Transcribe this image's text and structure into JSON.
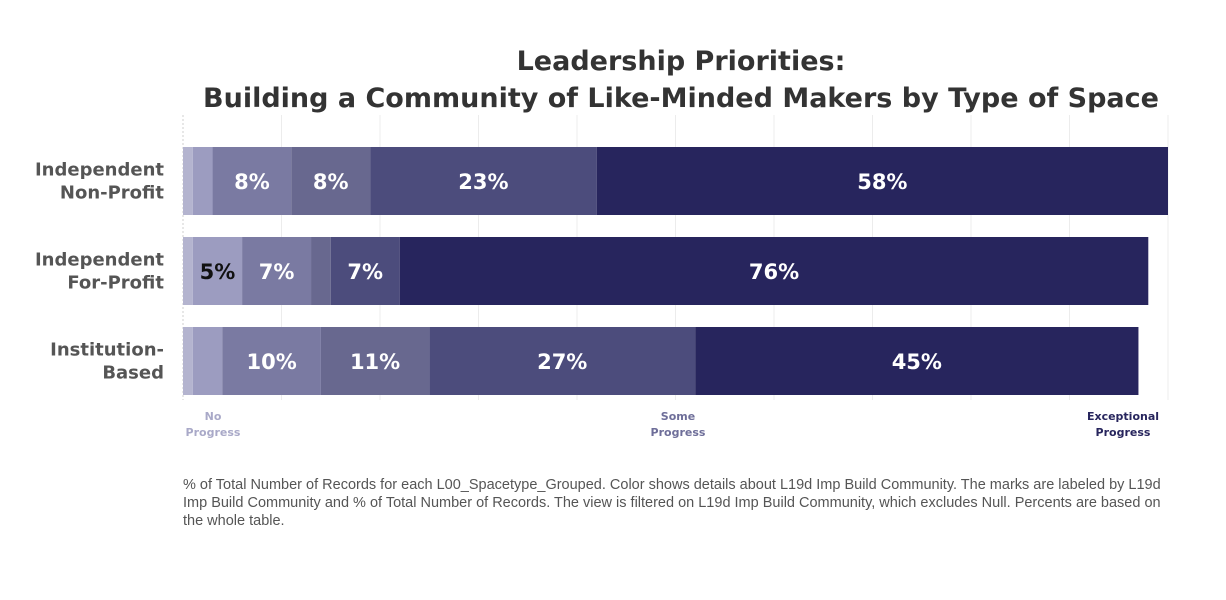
{
  "chart_data": {
    "type": "bar",
    "orientation": "horizontal",
    "stacked": true,
    "title": [
      "Leadership Priorities:",
      "Building a Community of Like-Minded Makers by Type of Space"
    ],
    "categories": [
      [
        "Independent",
        "Non-Profit"
      ],
      [
        "Independent",
        "For-Profit"
      ],
      [
        "Institution-",
        "Based"
      ]
    ],
    "series": [
      {
        "color": "#b4b4cf",
        "values": [
          1,
          1,
          1
        ]
      },
      {
        "color": "#9c9cc0",
        "values": [
          2,
          5,
          3
        ]
      },
      {
        "color": "#7a7aa2",
        "values": [
          8,
          7,
          10
        ]
      },
      {
        "color": "#68688f",
        "values": [
          8,
          2,
          11
        ]
      },
      {
        "color": "#4c4c7c",
        "values": [
          23,
          7,
          27
        ]
      },
      {
        "color": "#27255d",
        "values": [
          58,
          76,
          45
        ]
      }
    ],
    "data_labels": [
      [
        "",
        "",
        "8%",
        "8%",
        "23%",
        "58%"
      ],
      [
        "",
        "5%",
        "7%",
        "",
        "7%",
        "76%"
      ],
      [
        "",
        "",
        "10%",
        "11%",
        "27%",
        "45%"
      ]
    ],
    "data_label_colors": [
      [
        "",
        "",
        "#ffffff",
        "#ffffff",
        "#ffffff",
        "#ffffff"
      ],
      [
        "",
        "#111111",
        "#ffffff",
        "",
        "#ffffff",
        "#ffffff"
      ],
      [
        "",
        "",
        "#ffffff",
        "#ffffff",
        "#ffffff",
        "#ffffff"
      ]
    ],
    "xlim": [
      0,
      100
    ],
    "grid": true,
    "scale_labels": [
      {
        "lines": [
          "No",
          "Progress"
        ],
        "color": "#a9a9c8",
        "align": "start"
      },
      {
        "lines": [
          "Some",
          "Progress"
        ],
        "color": "#6e6e99",
        "align": "middle"
      },
      {
        "lines": [
          "Exceptional",
          "Progress"
        ],
        "color": "#27255d",
        "align": "end"
      }
    ]
  },
  "footnote": "% of Total Number of Records for each L00_Spacetype_Grouped.  Color shows details about L19d Imp Build Community.  The marks are labeled by L19d Imp Build Community and % of Total Number of Records. The view is filtered on L19d Imp Build Community, which excludes Null. Percents are based on the whole table."
}
